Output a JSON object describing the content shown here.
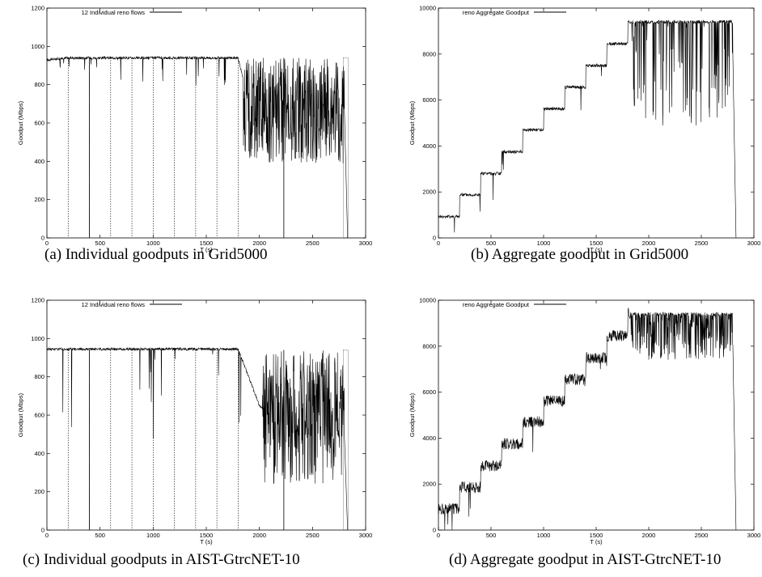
{
  "chart_data": [
    {
      "type": "line",
      "panel": "a",
      "caption": "(a) Individual goodputs in Grid5000",
      "xlabel": "T (s)",
      "ylabel": "Goodput (Mbps)",
      "xlim": [
        0,
        3000
      ],
      "ylim": [
        0,
        1200
      ],
      "xticks": [
        0,
        500,
        1000,
        1500,
        2000,
        2500,
        3000
      ],
      "yticks": [
        0,
        200,
        400,
        600,
        800,
        1000,
        1200
      ],
      "legend": "12 Individual reno flows",
      "legend_position": "top-left",
      "grid": false,
      "series": [
        {
          "name": "12 Individual reno flows",
          "x": [
            0,
            200,
            400,
            600,
            800,
            1000,
            1200,
            1400,
            1600,
            1800,
            1900,
            2000,
            2100,
            2200,
            2300,
            2400,
            2500,
            2600,
            2700,
            2800,
            2830
          ],
          "y": [
            930,
            940,
            940,
            940,
            940,
            940,
            940,
            940,
            940,
            940,
            700,
            650,
            680,
            620,
            640,
            700,
            620,
            660,
            700,
            600,
            0
          ]
        }
      ]
    },
    {
      "type": "line",
      "panel": "b",
      "caption": "(b) Aggregate goodput in Grid5000",
      "xlabel": "T (s)",
      "ylabel": "Goodput (Mbps)",
      "xlim": [
        0,
        3000
      ],
      "ylim": [
        0,
        10000
      ],
      "xticks": [
        0,
        500,
        1000,
        1500,
        2000,
        2500,
        3000
      ],
      "yticks": [
        0,
        2000,
        4000,
        6000,
        8000,
        10000
      ],
      "legend": "reno Aggregate Goodput",
      "legend_position": "top-left",
      "grid": false,
      "series": [
        {
          "name": "reno Aggregate Goodput",
          "x": [
            0,
            200,
            400,
            600,
            800,
            1000,
            1200,
            1400,
            1600,
            1800,
            2000,
            2200,
            2400,
            2600,
            2800,
            2830
          ],
          "y": [
            930,
            1880,
            2800,
            3750,
            4700,
            5620,
            6560,
            7500,
            8450,
            9400,
            9400,
            9400,
            9400,
            9400,
            9400,
            0
          ]
        }
      ]
    },
    {
      "type": "line",
      "panel": "c",
      "caption": "(c) Individual goodputs in AIST-GtrcNET-10",
      "xlabel": "T (s)",
      "ylabel": "Goodput (Mbps)",
      "xlim": [
        0,
        3000
      ],
      "ylim": [
        0,
        1200
      ],
      "xticks": [
        0,
        500,
        1000,
        1500,
        2000,
        2500,
        3000
      ],
      "yticks": [
        0,
        200,
        400,
        600,
        800,
        1000,
        1200
      ],
      "legend": "12 Individual reno flows",
      "legend_position": "top-left",
      "grid": false,
      "series": [
        {
          "name": "12 Individual reno flows",
          "x": [
            0,
            200,
            400,
            600,
            800,
            1000,
            1200,
            1400,
            1600,
            1800,
            2000,
            2100,
            2200,
            2300,
            2400,
            2500,
            2600,
            2700,
            2800,
            2830
          ],
          "y": [
            945,
            945,
            945,
            945,
            945,
            945,
            945,
            945,
            945,
            945,
            650,
            600,
            620,
            580,
            600,
            620,
            600,
            640,
            600,
            0
          ]
        }
      ]
    },
    {
      "type": "line",
      "panel": "d",
      "caption": "(d) Aggregate goodput in AIST-GtrcNET-10",
      "xlabel": "T (s)",
      "ylabel": "Goodput (Mbps)",
      "xlim": [
        0,
        3000
      ],
      "ylim": [
        0,
        10000
      ],
      "xticks": [
        0,
        500,
        1000,
        1500,
        2000,
        2500,
        3000
      ],
      "yticks": [
        0,
        2000,
        4000,
        6000,
        8000,
        10000
      ],
      "legend": "reno Aggregate Goodput",
      "legend_position": "top-left",
      "grid": false,
      "series": [
        {
          "name": "reno Aggregate Goodput",
          "x": [
            0,
            200,
            400,
            600,
            800,
            1000,
            1200,
            1400,
            1600,
            1800,
            2000,
            2200,
            2400,
            2600,
            2800,
            2830
          ],
          "y": [
            930,
            1880,
            2800,
            3750,
            4700,
            5620,
            6560,
            7500,
            8450,
            9400,
            9200,
            9000,
            9100,
            9000,
            9200,
            0
          ]
        }
      ]
    }
  ]
}
